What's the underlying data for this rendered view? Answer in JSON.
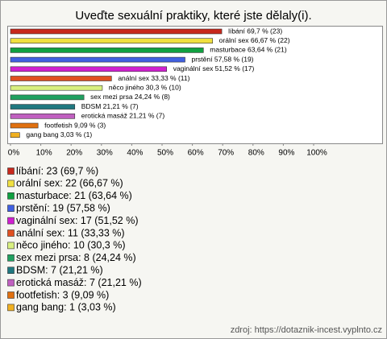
{
  "chart_data": {
    "type": "bar",
    "orientation": "horizontal",
    "title": "Uveďte sexuální praktiky, které jste dělaly(i).",
    "categories": [
      "líbání",
      "orální sex",
      "masturbace",
      "prstění",
      "vaginální sex",
      "anální sex",
      "něco jiného",
      "sex mezi prsa",
      "BDSM",
      "erotická masáž",
      "footfetish",
      "gang bang"
    ],
    "values": [
      69.7,
      66.67,
      63.64,
      57.58,
      51.52,
      33.33,
      30.3,
      24.24,
      21.21,
      21.21,
      9.09,
      3.03
    ],
    "value_labels": [
      "líbání 69,7 % (23)",
      "orální sex 66,67 % (22)",
      "masturbace 63,64 % (21)",
      "prstění 57,58 % (19)",
      "vaginální sex 51,52 % (17)",
      "anální sex 33,33 % (11)",
      "něco jiného 30,3 % (10)",
      "sex mezi prsa 24,24 % (8)",
      "BDSM 21,21 % (7)",
      "erotická masáž 21,21 % (7)",
      "footfetish 9,09 % (3)",
      "gang bang 3,03 % (1)"
    ],
    "legend_labels": [
      "líbání: 23 (69,7 %)",
      "orální sex: 22 (66,67 %)",
      "masturbace: 21 (63,64 %)",
      "prstění: 19 (57,58 %)",
      "vaginální sex: 17 (51,52 %)",
      "anální sex: 11 (33,33 %)",
      "něco jiného: 10 (30,3 %)",
      "sex mezi prsa: 8 (24,24 %)",
      "BDSM: 7 (21,21 %)",
      "erotická masáž: 7 (21,21 %)",
      "footfetish: 3 (9,09 %)",
      "gang bang: 1 (3,03 %)"
    ],
    "colors": [
      "#c8281c",
      "#f0e040",
      "#10a040",
      "#4060e0",
      "#d020d0",
      "#e05020",
      "#d8f080",
      "#20a060",
      "#207880",
      "#c060c0",
      "#e07010",
      "#f0b020"
    ],
    "xlim": [
      0,
      100
    ],
    "xticks": [
      {
        "value": 0,
        "label": "0%"
      },
      {
        "value": 10,
        "label": "10%"
      },
      {
        "value": 20,
        "label": "20%"
      },
      {
        "value": 30,
        "label": "30%"
      },
      {
        "value": 40,
        "label": "40%"
      },
      {
        "value": 50,
        "label": "50%"
      },
      {
        "value": 60,
        "label": "60%"
      },
      {
        "value": 70,
        "label": "70%"
      },
      {
        "value": 80,
        "label": "80%"
      },
      {
        "value": 90,
        "label": "90%"
      },
      {
        "value": 100,
        "label": "100%"
      }
    ],
    "grid": false,
    "source": "zdroj: https://dotaznik-incest.vyplnto.cz"
  }
}
